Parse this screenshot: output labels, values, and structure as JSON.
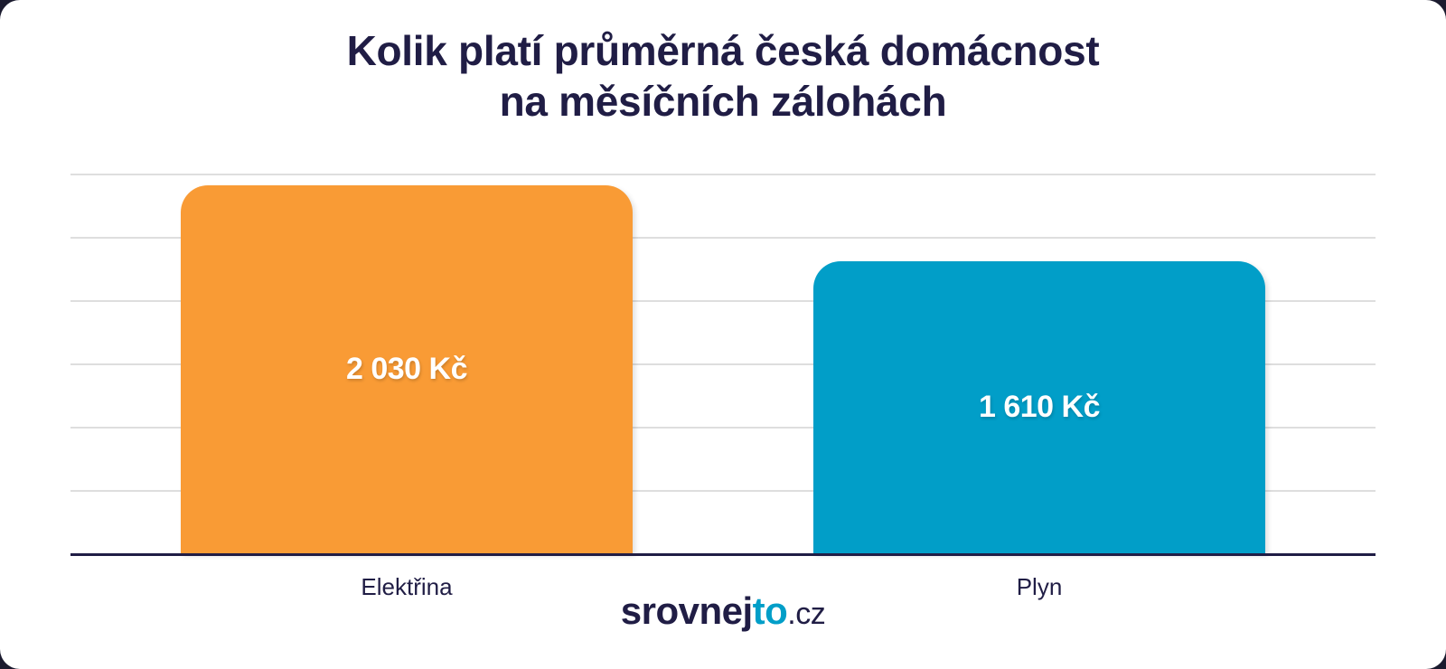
{
  "title_line1": "Kolik platí průměrná česká domácnost",
  "title_line2": "na měsíčních zálohách",
  "bars": [
    {
      "label": "Elektřina",
      "value_label": "2 030 Kč",
      "color": "#f99b35"
    },
    {
      "label": "Plyn",
      "value_label": "1 610 Kč",
      "color": "#019ec8"
    }
  ],
  "logo": {
    "main": "srovnej",
    "accent": "to",
    "suffix": ".cz"
  },
  "chart_data": {
    "type": "bar",
    "title": "Kolik platí průměrná česká domácnost na měsíčních zálohách",
    "categories": [
      "Elektřina",
      "Plyn"
    ],
    "values": [
      2030,
      1610
    ],
    "data_labels": [
      "2 030 Kč",
      "1 610 Kč"
    ],
    "colors": [
      "#f99b35",
      "#019ec8"
    ],
    "xlabel": "",
    "ylabel": "",
    "unit": "Kč",
    "ylim": [
      0,
      2100
    ],
    "grid": true,
    "y_axis_labels_shown": false,
    "legend": "none"
  }
}
